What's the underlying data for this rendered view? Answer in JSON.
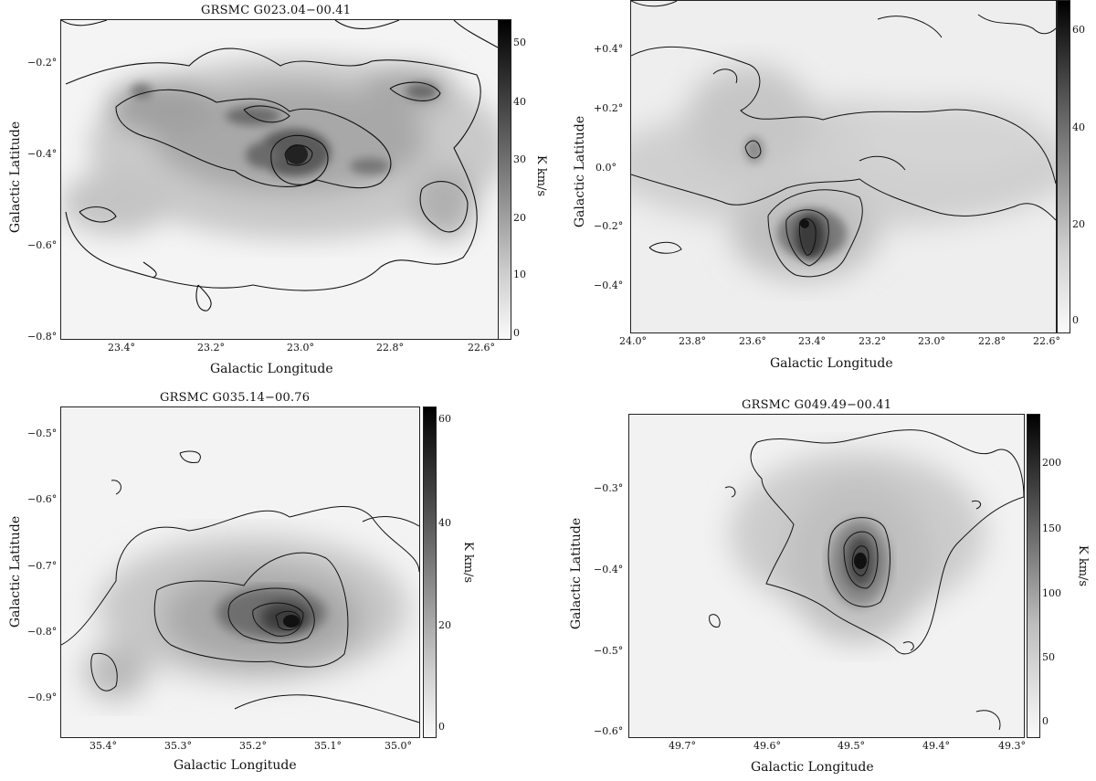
{
  "panels": [
    {
      "id": "p1",
      "title": "GRSMC G023.04−00.41",
      "xlabel": "Galactic Longitude",
      "ylabel": "Galactic Latitude",
      "xticks": [
        "23.4°",
        "23.2°",
        "23.0°",
        "22.8°",
        "22.6°"
      ],
      "yticks": [
        "−0.2°",
        "−0.4°",
        "−0.6°",
        "−0.8°"
      ],
      "cbar_ticks": [
        "50",
        "40",
        "30",
        "20",
        "10",
        "0"
      ],
      "cbar_label": "K km/s"
    },
    {
      "id": "p2",
      "title": "",
      "xlabel": "Galactic Longitude",
      "ylabel": "Galactic Latitude",
      "xticks": [
        "24.0°",
        "23.8°",
        "23.6°",
        "23.4°",
        "23.2°",
        "23.0°",
        "22.8°",
        "22.6°"
      ],
      "yticks": [
        "+0.4°",
        "+0.2°",
        "0.0°",
        "−0.2°",
        "−0.4°"
      ],
      "cbar_ticks": [
        "60",
        "40",
        "20",
        "0"
      ],
      "cbar_label": ""
    },
    {
      "id": "p3",
      "title": "GRSMC G035.14−00.76",
      "xlabel": "Galactic Longitude",
      "ylabel": "Galactic Latitude",
      "xticks": [
        "35.4°",
        "35.3°",
        "35.2°",
        "35.1°",
        "35.0°"
      ],
      "yticks": [
        "−0.5°",
        "−0.6°",
        "−0.7°",
        "−0.8°",
        "−0.9°"
      ],
      "cbar_ticks": [
        "60",
        "40",
        "20",
        "0"
      ],
      "cbar_label": "K km/s"
    },
    {
      "id": "p4",
      "title": "GRSMC G049.49−00.41",
      "xlabel": "Galactic Longitude",
      "ylabel": "Galactic Latitude",
      "xticks": [
        "49.7°",
        "49.6°",
        "49.5°",
        "49.4°",
        "49.3°"
      ],
      "yticks": [
        "−0.3°",
        "−0.4°",
        "−0.5°",
        "−0.6°"
      ],
      "cbar_ticks": [
        "200",
        "150",
        "100",
        "50",
        "0"
      ],
      "cbar_label": "K km/s"
    }
  ]
}
